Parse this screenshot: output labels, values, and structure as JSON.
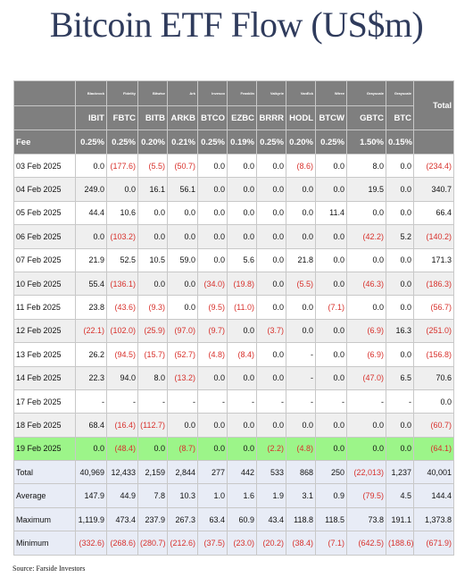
{
  "title": "Bitcoin ETF Flow (US$m)",
  "issuers": [
    "Blackrock",
    "Fidelity",
    "Bitwise",
    "Ark",
    "Invesco",
    "Franklin",
    "Valkyrie",
    "VanEck",
    "Wtree",
    "Grayscale",
    "Grayscale"
  ],
  "total_label": "Total",
  "tickers": [
    "IBIT",
    "FBTC",
    "BITB",
    "ARKB",
    "BTCO",
    "EZBC",
    "BRRR",
    "HODL",
    "BTCW",
    "GBTC",
    "BTC"
  ],
  "fee_label": "Fee",
  "fees": [
    "0.25%",
    "0.25%",
    "0.20%",
    "0.21%",
    "0.25%",
    "0.19%",
    "0.25%",
    "0.20%",
    "0.25%",
    "1.50%",
    "0.15%"
  ],
  "rows": [
    {
      "date": "03 Feb 2025",
      "values": [
        "0.0",
        "(177.6)",
        "(5.5)",
        "(50.7)",
        "0.0",
        "0.0",
        "0.0",
        "(8.6)",
        "0.0",
        "8.0",
        "0.0"
      ],
      "total": "(234.4)"
    },
    {
      "date": "04 Feb 2025",
      "values": [
        "249.0",
        "0.0",
        "16.1",
        "56.1",
        "0.0",
        "0.0",
        "0.0",
        "0.0",
        "0.0",
        "19.5",
        "0.0"
      ],
      "total": "340.7"
    },
    {
      "date": "05 Feb 2025",
      "values": [
        "44.4",
        "10.6",
        "0.0",
        "0.0",
        "0.0",
        "0.0",
        "0.0",
        "0.0",
        "11.4",
        "0.0",
        "0.0"
      ],
      "total": "66.4"
    },
    {
      "date": "06 Feb 2025",
      "values": [
        "0.0",
        "(103.2)",
        "0.0",
        "0.0",
        "0.0",
        "0.0",
        "0.0",
        "0.0",
        "0.0",
        "(42.2)",
        "5.2"
      ],
      "total": "(140.2)"
    },
    {
      "date": "07 Feb 2025",
      "values": [
        "21.9",
        "52.5",
        "10.5",
        "59.0",
        "0.0",
        "5.6",
        "0.0",
        "21.8",
        "0.0",
        "0.0",
        "0.0"
      ],
      "total": "171.3"
    },
    {
      "date": "10 Feb 2025",
      "values": [
        "55.4",
        "(136.1)",
        "0.0",
        "0.0",
        "(34.0)",
        "(19.8)",
        "0.0",
        "(5.5)",
        "0.0",
        "(46.3)",
        "0.0"
      ],
      "total": "(186.3)"
    },
    {
      "date": "11 Feb 2025",
      "values": [
        "23.8",
        "(43.6)",
        "(9.3)",
        "0.0",
        "(9.5)",
        "(11.0)",
        "0.0",
        "0.0",
        "(7.1)",
        "0.0",
        "0.0"
      ],
      "total": "(56.7)"
    },
    {
      "date": "12 Feb 2025",
      "values": [
        "(22.1)",
        "(102.0)",
        "(25.9)",
        "(97.0)",
        "(9.7)",
        "0.0",
        "(3.7)",
        "0.0",
        "0.0",
        "(6.9)",
        "16.3"
      ],
      "total": "(251.0)"
    },
    {
      "date": "13 Feb 2025",
      "values": [
        "26.2",
        "(94.5)",
        "(15.7)",
        "(52.7)",
        "(4.8)",
        "(8.4)",
        "0.0",
        "-",
        "0.0",
        "(6.9)",
        "0.0"
      ],
      "total": "(156.8)"
    },
    {
      "date": "14 Feb 2025",
      "values": [
        "22.3",
        "94.0",
        "8.0",
        "(13.2)",
        "0.0",
        "0.0",
        "0.0",
        "-",
        "0.0",
        "(47.0)",
        "6.5"
      ],
      "total": "70.6"
    },
    {
      "date": "17 Feb 2025",
      "values": [
        "-",
        "-",
        "-",
        "-",
        "-",
        "-",
        "-",
        "-",
        "-",
        "-",
        "-"
      ],
      "total": "0.0"
    },
    {
      "date": "18 Feb 2025",
      "values": [
        "68.4",
        "(16.4)",
        "(112.7)",
        "0.0",
        "0.0",
        "0.0",
        "0.0",
        "0.0",
        "0.0",
        "0.0",
        "0.0"
      ],
      "total": "(60.7)"
    },
    {
      "date": "19 Feb 2025",
      "values": [
        "0.0",
        "(48.4)",
        "0.0",
        "(8.7)",
        "0.0",
        "0.0",
        "(2.2)",
        "(4.8)",
        "0.0",
        "0.0",
        "0.0"
      ],
      "total": "(64.1)"
    }
  ],
  "stats": [
    {
      "label": "Total",
      "values": [
        "40,969",
        "12,433",
        "2,159",
        "2,844",
        "277",
        "442",
        "533",
        "868",
        "250",
        "(22,013)",
        "1,237"
      ],
      "total": "40,001"
    },
    {
      "label": "Average",
      "values": [
        "147.9",
        "44.9",
        "7.8",
        "10.3",
        "1.0",
        "1.6",
        "1.9",
        "3.1",
        "0.9",
        "(79.5)",
        "4.5"
      ],
      "total": "144.4"
    },
    {
      "label": "Maximum",
      "values": [
        "1,119.9",
        "473.4",
        "237.9",
        "267.3",
        "63.4",
        "60.9",
        "43.4",
        "118.8",
        "118.5",
        "73.8",
        "191.1"
      ],
      "total": "1,373.8"
    },
    {
      "label": "Minimum",
      "values": [
        "(332.6)",
        "(268.6)",
        "(280.7)",
        "(212.6)",
        "(37.5)",
        "(23.0)",
        "(20.2)",
        "(38.4)",
        "(7.1)",
        "(642.5)",
        "(188.6)"
      ],
      "total": "(671.9)"
    }
  ],
  "highlight_date": "19 Feb 2025",
  "colors": {
    "header": "#7f7f7f",
    "negative": "#d8312c",
    "highlight": "#9cf589",
    "stats_bg": "#e8ecf6",
    "title": "#2f3b5c"
  },
  "source": "Source: Farside Investors"
}
